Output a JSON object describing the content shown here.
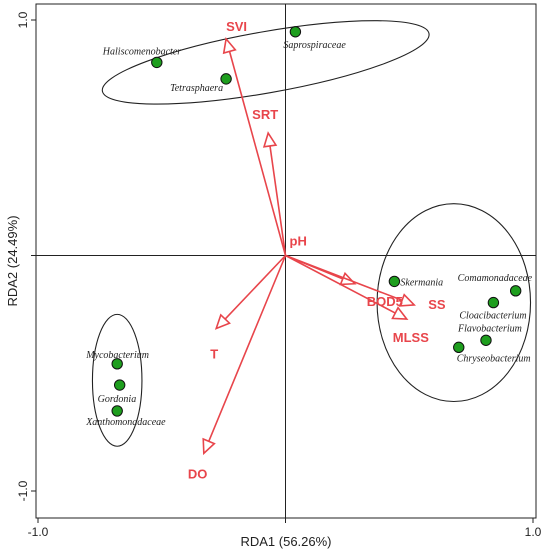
{
  "chart_data": {
    "type": "scatter",
    "title": "",
    "xlabel": "RDA1 (56.26%)",
    "ylabel": "RDA2 (24.49%)",
    "xlim": [
      -1.0,
      1.0
    ],
    "ylim": [
      -1.0,
      1.0
    ],
    "x_tick_labels": [
      "-1.0",
      "1.0"
    ],
    "y_tick_labels": [
      "1.0",
      "-1.0"
    ],
    "grid": false,
    "legend": "none",
    "colors": {
      "arrows": "#e8454b",
      "points": "#1e9e1e",
      "ellipses": "#222222"
    },
    "vectors": [
      {
        "label": "SVI",
        "x": -0.24,
        "y": 0.92
      },
      {
        "label": "SRT",
        "x": -0.07,
        "y": 0.52
      },
      {
        "label": "pH",
        "x": 0.0,
        "y": 0.0
      },
      {
        "label": "BOD5",
        "x": 0.28,
        "y": -0.12
      },
      {
        "label": "SS",
        "x": 0.52,
        "y": -0.21
      },
      {
        "label": "MLSS",
        "x": 0.49,
        "y": -0.27
      },
      {
        "label": "T",
        "x": -0.28,
        "y": -0.31
      },
      {
        "label": "DO",
        "x": -0.33,
        "y": -0.84
      }
    ],
    "points": [
      {
        "label": "Haliscomenobacter",
        "x": -0.52,
        "y": 0.82
      },
      {
        "label": "Saprospiraceae",
        "x": 0.04,
        "y": 0.95
      },
      {
        "label": "Tetrasphaera",
        "x": -0.24,
        "y": 0.75
      },
      {
        "label": "Skermania",
        "x": 0.44,
        "y": -0.11
      },
      {
        "label": "Comamonadaceae",
        "x": 0.93,
        "y": -0.15
      },
      {
        "label": "Cloacibacterium",
        "x": 0.84,
        "y": -0.2
      },
      {
        "label": "Flavobacterium",
        "x": 0.81,
        "y": -0.36
      },
      {
        "label": "Chryseobacterium",
        "x": 0.7,
        "y": -0.39
      },
      {
        "label": "Mycobacterium",
        "x": -0.68,
        "y": -0.46
      },
      {
        "label": "Gordonia",
        "x": -0.67,
        "y": -0.55
      },
      {
        "label": "Xanthomonadaceae",
        "x": -0.68,
        "y": -0.66
      }
    ],
    "ellipses": [
      {
        "cx": -0.08,
        "cy": 0.82,
        "rx": 0.67,
        "ry": 0.13,
        "rotation": -10
      },
      {
        "cx": 0.68,
        "cy": -0.2,
        "rx": 0.31,
        "ry": 0.42,
        "rotation": 0
      },
      {
        "cx": -0.68,
        "cy": -0.53,
        "rx": 0.1,
        "ry": 0.28,
        "rotation": 0
      }
    ]
  }
}
